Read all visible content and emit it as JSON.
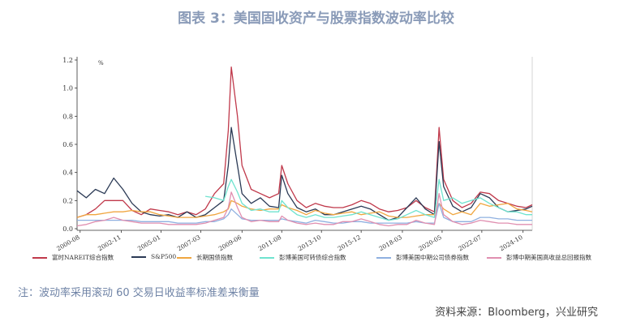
{
  "title": "图表 3：美国固收资产与股票指数波动率比较",
  "note": "注：波动率采用滚动 60 交易日收益率标准差来衡量",
  "source": "资料来源：Bloomberg，兴业研究",
  "chart_data": {
    "type": "line",
    "unit_label": "%",
    "ylim": [
      0,
      1.2
    ],
    "yticks": [
      0.0,
      0.2,
      0.4,
      0.6,
      0.8,
      1.0,
      1.2
    ],
    "ytick_labels": [
      "0.0",
      "0.2",
      "0.4",
      "0.6",
      "0.8",
      "1.0",
      "1.2"
    ],
    "xlim": [
      "2000-06",
      "2025-04"
    ],
    "xticks": [
      "2000-08",
      "2002-11",
      "2005-01",
      "2007-03",
      "2009-06",
      "2011-08",
      "2013-10",
      "2015-12",
      "2018-03",
      "2020-05",
      "2022-07",
      "2024-10"
    ],
    "grid": false,
    "legend_position": "bottom",
    "x": [
      "2000-06",
      "2000-12",
      "2001-06",
      "2001-12",
      "2002-06",
      "2002-12",
      "2003-06",
      "2003-12",
      "2004-06",
      "2004-12",
      "2005-06",
      "2005-12",
      "2006-06",
      "2006-12",
      "2007-06",
      "2007-12",
      "2008-06",
      "2008-09",
      "2008-11",
      "2009-03",
      "2009-06",
      "2009-12",
      "2010-06",
      "2010-12",
      "2011-06",
      "2011-08",
      "2011-12",
      "2012-06",
      "2012-12",
      "2013-06",
      "2013-12",
      "2014-06",
      "2014-12",
      "2015-06",
      "2015-12",
      "2016-06",
      "2016-12",
      "2017-06",
      "2017-12",
      "2018-06",
      "2018-12",
      "2019-06",
      "2019-12",
      "2020-03",
      "2020-06",
      "2020-12",
      "2021-06",
      "2021-12",
      "2022-06",
      "2022-12",
      "2023-06",
      "2023-12",
      "2024-06",
      "2024-12",
      "2025-04"
    ],
    "series": [
      {
        "name": "富时NAREIT综合指数",
        "color": "#c0394b",
        "values": [
          0.08,
          0.1,
          0.14,
          0.2,
          0.2,
          0.2,
          0.13,
          0.1,
          0.14,
          0.13,
          0.12,
          0.1,
          0.12,
          0.1,
          0.14,
          0.25,
          0.32,
          0.7,
          1.15,
          0.8,
          0.45,
          0.28,
          0.25,
          0.22,
          0.25,
          0.45,
          0.32,
          0.2,
          0.15,
          0.18,
          0.16,
          0.15,
          0.15,
          0.17,
          0.2,
          0.18,
          0.14,
          0.12,
          0.13,
          0.15,
          0.2,
          0.15,
          0.12,
          0.72,
          0.35,
          0.2,
          0.15,
          0.18,
          0.26,
          0.25,
          0.2,
          0.18,
          0.16,
          0.15,
          0.17
        ]
      },
      {
        "name": "S&P500",
        "color": "#2b3a55",
        "values": [
          0.27,
          0.22,
          0.28,
          0.25,
          0.36,
          0.28,
          0.18,
          0.12,
          0.1,
          0.09,
          0.1,
          0.08,
          0.12,
          0.08,
          0.1,
          0.15,
          0.2,
          0.45,
          0.72,
          0.45,
          0.25,
          0.18,
          0.22,
          0.16,
          0.15,
          0.38,
          0.25,
          0.15,
          0.12,
          0.14,
          0.1,
          0.1,
          0.12,
          0.14,
          0.16,
          0.14,
          0.1,
          0.06,
          0.08,
          0.15,
          0.22,
          0.14,
          0.1,
          0.62,
          0.3,
          0.16,
          0.12,
          0.15,
          0.25,
          0.22,
          0.15,
          0.12,
          0.13,
          0.14,
          0.16
        ]
      },
      {
        "name": "长期国债指数",
        "color": "#f0a640",
        "values": [
          0.08,
          0.1,
          0.1,
          0.11,
          0.12,
          0.12,
          0.13,
          0.12,
          0.12,
          0.1,
          0.09,
          0.08,
          0.08,
          0.08,
          0.09,
          0.1,
          0.12,
          0.14,
          0.2,
          0.18,
          0.16,
          0.14,
          0.13,
          0.14,
          0.14,
          0.17,
          0.15,
          0.13,
          0.1,
          0.13,
          0.11,
          0.1,
          0.11,
          0.12,
          0.1,
          0.11,
          0.12,
          0.09,
          0.08,
          0.08,
          0.09,
          0.1,
          0.1,
          0.18,
          0.14,
          0.1,
          0.12,
          0.1,
          0.18,
          0.16,
          0.17,
          0.18,
          0.14,
          0.13,
          0.12
        ]
      },
      {
        "name": "彭博美国可转债综合指数",
        "color": "#6fe3cf",
        "values": [
          null,
          null,
          null,
          null,
          null,
          null,
          null,
          null,
          null,
          null,
          null,
          null,
          null,
          null,
          0.23,
          0.22,
          0.2,
          0.3,
          0.35,
          0.26,
          0.18,
          0.13,
          0.14,
          0.12,
          0.12,
          0.2,
          0.15,
          0.1,
          0.08,
          0.1,
          0.08,
          0.08,
          0.09,
          0.1,
          0.12,
          0.1,
          0.08,
          0.06,
          0.07,
          0.1,
          0.13,
          0.1,
          0.08,
          0.35,
          0.2,
          0.22,
          0.18,
          0.2,
          0.22,
          0.18,
          0.15,
          0.12,
          0.12,
          0.1,
          0.1
        ]
      },
      {
        "name": "彭博美国中期公司债券指数",
        "color": "#8fb0e0",
        "values": [
          0.06,
          0.06,
          0.06,
          0.06,
          0.06,
          0.06,
          0.06,
          0.05,
          0.05,
          0.05,
          0.05,
          0.04,
          0.04,
          0.04,
          0.05,
          0.05,
          0.07,
          0.1,
          0.14,
          0.1,
          0.07,
          0.06,
          0.06,
          0.06,
          0.06,
          0.07,
          0.06,
          0.05,
          0.04,
          0.06,
          0.05,
          0.04,
          0.04,
          0.05,
          0.05,
          0.04,
          0.04,
          0.04,
          0.04,
          0.04,
          0.05,
          0.04,
          0.04,
          0.18,
          0.08,
          0.05,
          0.05,
          0.05,
          0.08,
          0.08,
          0.07,
          0.07,
          0.06,
          0.06,
          0.06
        ]
      },
      {
        "name": "彭博中期美国高收益总回报指数",
        "color": "#e08fb0",
        "values": [
          0.02,
          0.03,
          0.05,
          0.06,
          0.08,
          0.06,
          0.05,
          0.04,
          0.04,
          0.04,
          0.03,
          0.03,
          0.03,
          0.03,
          0.04,
          0.06,
          0.08,
          0.15,
          0.26,
          0.15,
          0.08,
          0.05,
          0.06,
          0.05,
          0.05,
          0.09,
          0.06,
          0.04,
          0.03,
          0.04,
          0.03,
          0.03,
          0.05,
          0.05,
          0.07,
          0.05,
          0.03,
          0.02,
          0.03,
          0.03,
          0.06,
          0.04,
          0.03,
          0.25,
          0.1,
          0.05,
          0.03,
          0.04,
          0.06,
          0.05,
          0.04,
          0.04,
          0.03,
          0.03,
          0.03
        ]
      }
    ]
  }
}
